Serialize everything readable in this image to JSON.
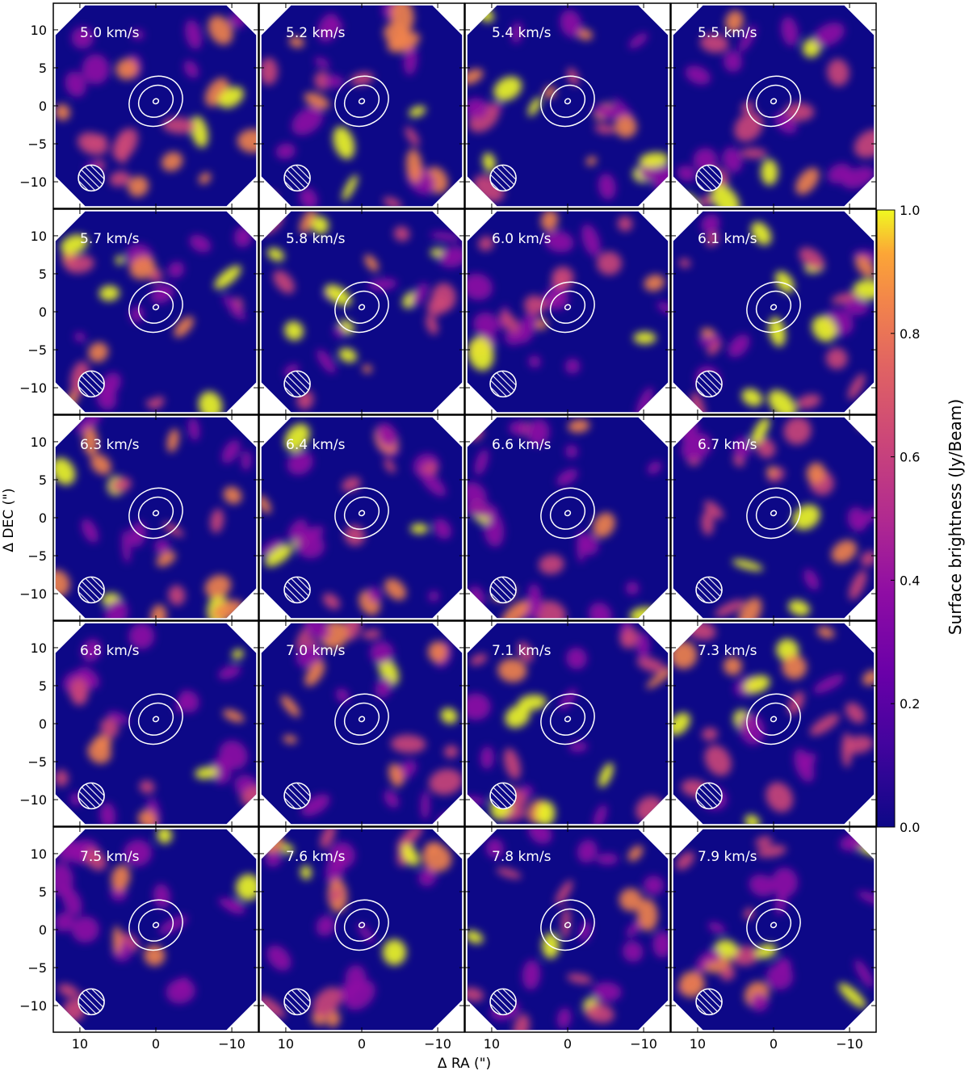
{
  "chart_data": {
    "type": "heatmap",
    "layout": "channel-map grid, 5 rows x 4 columns",
    "title": "",
    "xlabel": "Δ RA (\")",
    "ylabel": "Δ DEC (\")",
    "x_ticks": [
      "10",
      "0",
      "−10"
    ],
    "y_ticks": [
      "10",
      "5",
      "0",
      "−5",
      "−10"
    ],
    "x_tick_values": [
      10,
      0,
      -10
    ],
    "y_tick_values": [
      10,
      5,
      0,
      -5,
      -10
    ],
    "xlim": [
      13.5,
      -13.5
    ],
    "ylim": [
      -13.5,
      13.5
    ],
    "x_axis_inverted": true,
    "colorbar": {
      "label": "Surface brightness (Jy/Beam)",
      "range": [
        0.0,
        1.0
      ],
      "ticks": [
        "0.0",
        "0.2",
        "0.4",
        "0.6",
        "0.8",
        "1.0"
      ],
      "tick_values": [
        0.0,
        0.2,
        0.4,
        0.6,
        0.8,
        1.0
      ],
      "colormap": "plasma"
    },
    "velocity_unit": "km/s",
    "channels": [
      "5.0 km/s",
      "5.2 km/s",
      "5.4 km/s",
      "5.5 km/s",
      "5.7 km/s",
      "5.8 km/s",
      "6.0 km/s",
      "6.1 km/s",
      "6.3 km/s",
      "6.4 km/s",
      "6.6 km/s",
      "6.7 km/s",
      "6.8 km/s",
      "7.0 km/s",
      "7.1 km/s",
      "7.3 km/s",
      "7.5 km/s",
      "7.6 km/s",
      "7.8 km/s",
      "7.9 km/s"
    ],
    "channel_velocities": [
      5.0,
      5.2,
      5.4,
      5.5,
      5.7,
      5.8,
      6.0,
      6.1,
      6.3,
      6.4,
      6.6,
      6.7,
      6.8,
      7.0,
      7.1,
      7.3,
      7.5,
      7.6,
      7.8,
      7.9
    ],
    "contours": {
      "color": "#ffffff",
      "center": [
        0,
        0.6
      ],
      "levels": 3
    },
    "beam": {
      "center": [
        8.5,
        -9.5
      ],
      "hatched": true,
      "color": "#ffffff"
    },
    "colors": {
      "background_low": "#0d0887",
      "mid": "#9c179e",
      "high": "#ed7953",
      "peak": "#f0f921"
    }
  }
}
